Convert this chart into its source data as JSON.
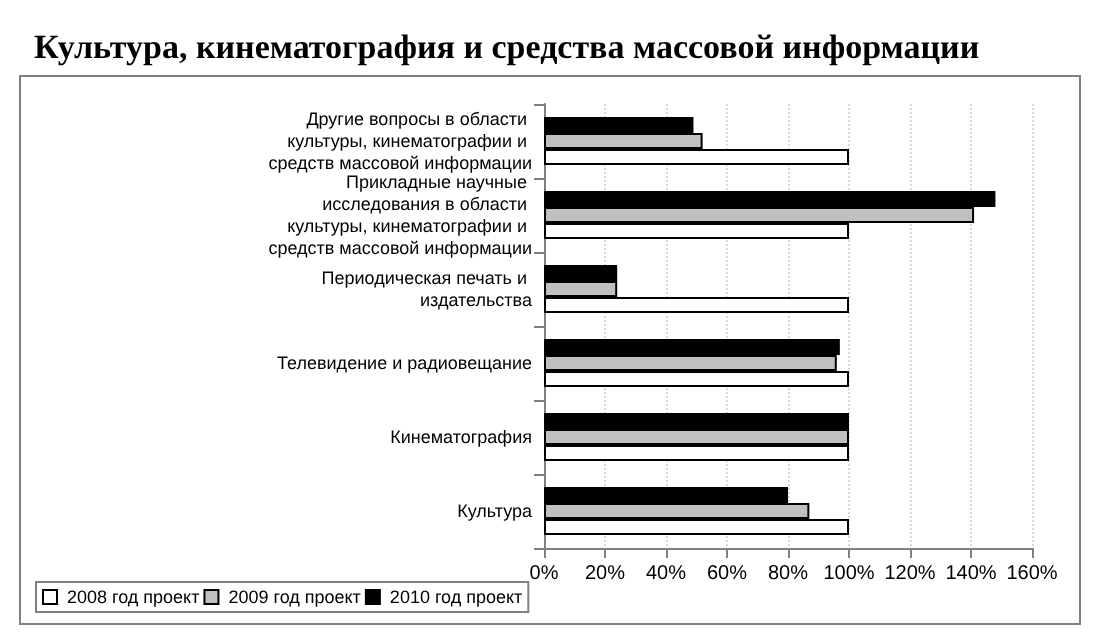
{
  "chart_data": {
    "type": "bar",
    "orientation": "horizontal",
    "title": "Культура, кинематография и средства массовой информации",
    "categories": [
      "Другие вопросы в области культуры, кинематографии и средств массовой информации",
      "Прикладные научные исследования в области культуры, кинематографии и средств массовой информации",
      "Периодическая печать и издательства",
      "Телевидение и радиовещание",
      "Кинематография",
      "Культура"
    ],
    "series": [
      {
        "name": "2008 год проект",
        "color": "#ffffff",
        "values": [
          100,
          100,
          100,
          100,
          100,
          100
        ]
      },
      {
        "name": "2009 год проект",
        "color": "#c0c0c0",
        "values": [
          52,
          141,
          24,
          96,
          100,
          87
        ]
      },
      {
        "name": "2010 год проект",
        "color": "#000000",
        "values": [
          49,
          148,
          24,
          97,
          100,
          80
        ]
      }
    ],
    "xlim": [
      0,
      160
    ],
    "xticks": [
      {
        "value": 0,
        "label": "0%"
      },
      {
        "value": 20,
        "label": "20%"
      },
      {
        "value": 40,
        "label": "40%"
      },
      {
        "value": 60,
        "label": "60%"
      },
      {
        "value": 80,
        "label": "80%"
      },
      {
        "value": 100,
        "label": "100%"
      },
      {
        "value": 120,
        "label": "120%"
      },
      {
        "value": 140,
        "label": "140%"
      },
      {
        "value": 160,
        "label": "160%"
      }
    ],
    "grid": "x",
    "legend": "bottom left"
  }
}
